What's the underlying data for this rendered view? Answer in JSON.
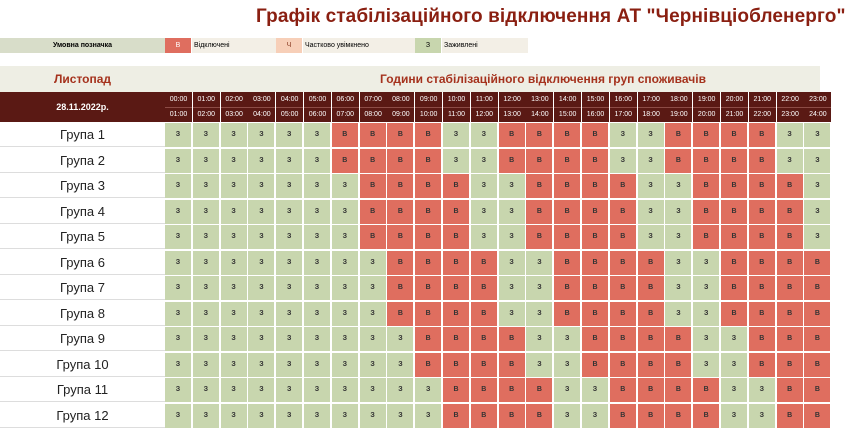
{
  "title": "Графік стабілізаційного відключення АТ \"Чернівціобленерго\"",
  "legend": {
    "heading": "Умовна позначка",
    "items": [
      {
        "code": "В",
        "label": "Відключені"
      },
      {
        "code": "Ч",
        "label": "Частково увімкнено"
      },
      {
        "code": "З",
        "label": "Заживлені"
      }
    ]
  },
  "colors": {
    "on": "#c8d6ae",
    "off": "#df6e5f",
    "partial": "#f7cfb8",
    "header_dark": "#5a1914",
    "accent": "#a5321d"
  },
  "table": {
    "month": "Листопад",
    "hours_title": "Години стабілізаційного відключення груп споживачів",
    "date": "28.11.2022р.",
    "hours": [
      {
        "from": "00:00",
        "to": "01:00"
      },
      {
        "from": "01:00",
        "to": "02:00"
      },
      {
        "from": "02:00",
        "to": "03:00"
      },
      {
        "from": "03:00",
        "to": "04:00"
      },
      {
        "from": "04:00",
        "to": "05:00"
      },
      {
        "from": "05:00",
        "to": "06:00"
      },
      {
        "from": "06:00",
        "to": "07:00"
      },
      {
        "from": "07:00",
        "to": "08:00"
      },
      {
        "from": "08:00",
        "to": "09:00"
      },
      {
        "from": "09:00",
        "to": "10:00"
      },
      {
        "from": "10:00",
        "to": "11:00"
      },
      {
        "from": "11:00",
        "to": "12:00"
      },
      {
        "from": "12:00",
        "to": "13:00"
      },
      {
        "from": "13:00",
        "to": "14:00"
      },
      {
        "from": "14:00",
        "to": "15:00"
      },
      {
        "from": "15:00",
        "to": "16:00"
      },
      {
        "from": "16:00",
        "to": "17:00"
      },
      {
        "from": "17:00",
        "to": "18:00"
      },
      {
        "from": "18:00",
        "to": "19:00"
      },
      {
        "from": "19:00",
        "to": "20:00"
      },
      {
        "from": "20:00",
        "to": "21:00"
      },
      {
        "from": "21:00",
        "to": "22:00"
      },
      {
        "from": "22:00",
        "to": "23:00"
      },
      {
        "from": "23:00",
        "to": "24:00"
      }
    ],
    "groups": [
      {
        "name": "Група 1",
        "cells": [
          "З",
          "З",
          "З",
          "З",
          "З",
          "З",
          "В",
          "В",
          "В",
          "В",
          "З",
          "З",
          "В",
          "В",
          "В",
          "В",
          "З",
          "З",
          "В",
          "В",
          "В",
          "В",
          "З",
          "З"
        ]
      },
      {
        "name": "Група 2",
        "cells": [
          "З",
          "З",
          "З",
          "З",
          "З",
          "З",
          "В",
          "В",
          "В",
          "В",
          "З",
          "З",
          "В",
          "В",
          "В",
          "В",
          "З",
          "З",
          "В",
          "В",
          "В",
          "В",
          "З",
          "З"
        ]
      },
      {
        "name": "Група 3",
        "cells": [
          "З",
          "З",
          "З",
          "З",
          "З",
          "З",
          "З",
          "В",
          "В",
          "В",
          "В",
          "З",
          "З",
          "В",
          "В",
          "В",
          "В",
          "З",
          "З",
          "В",
          "В",
          "В",
          "В",
          "З"
        ]
      },
      {
        "name": "Група 4",
        "cells": [
          "З",
          "З",
          "З",
          "З",
          "З",
          "З",
          "З",
          "В",
          "В",
          "В",
          "В",
          "З",
          "З",
          "В",
          "В",
          "В",
          "В",
          "З",
          "З",
          "В",
          "В",
          "В",
          "В",
          "З"
        ]
      },
      {
        "name": "Група 5",
        "cells": [
          "З",
          "З",
          "З",
          "З",
          "З",
          "З",
          "З",
          "В",
          "В",
          "В",
          "В",
          "З",
          "З",
          "В",
          "В",
          "В",
          "В",
          "З",
          "З",
          "В",
          "В",
          "В",
          "В",
          "З"
        ]
      },
      {
        "name": "Група 6",
        "cells": [
          "З",
          "З",
          "З",
          "З",
          "З",
          "З",
          "З",
          "З",
          "В",
          "В",
          "В",
          "В",
          "З",
          "З",
          "В",
          "В",
          "В",
          "В",
          "З",
          "З",
          "В",
          "В",
          "В",
          "В"
        ]
      },
      {
        "name": "Група 7",
        "cells": [
          "З",
          "З",
          "З",
          "З",
          "З",
          "З",
          "З",
          "З",
          "В",
          "В",
          "В",
          "В",
          "З",
          "З",
          "В",
          "В",
          "В",
          "В",
          "З",
          "З",
          "В",
          "В",
          "В",
          "В"
        ]
      },
      {
        "name": "Група 8",
        "cells": [
          "З",
          "З",
          "З",
          "З",
          "З",
          "З",
          "З",
          "З",
          "В",
          "В",
          "В",
          "В",
          "З",
          "З",
          "В",
          "В",
          "В",
          "В",
          "З",
          "З",
          "В",
          "В",
          "В",
          "В"
        ]
      },
      {
        "name": "Група 9",
        "cells": [
          "З",
          "З",
          "З",
          "З",
          "З",
          "З",
          "З",
          "З",
          "З",
          "В",
          "В",
          "В",
          "В",
          "З",
          "З",
          "В",
          "В",
          "В",
          "В",
          "З",
          "З",
          "В",
          "В",
          "В"
        ]
      },
      {
        "name": "Група 10",
        "cells": [
          "З",
          "З",
          "З",
          "З",
          "З",
          "З",
          "З",
          "З",
          "З",
          "В",
          "В",
          "В",
          "В",
          "З",
          "З",
          "В",
          "В",
          "В",
          "В",
          "З",
          "З",
          "В",
          "В",
          "В"
        ]
      },
      {
        "name": "Група 11",
        "cells": [
          "З",
          "З",
          "З",
          "З",
          "З",
          "З",
          "З",
          "З",
          "З",
          "З",
          "В",
          "В",
          "В",
          "В",
          "З",
          "З",
          "В",
          "В",
          "В",
          "В",
          "З",
          "З",
          "В",
          "В"
        ]
      },
      {
        "name": "Група 12",
        "cells": [
          "З",
          "З",
          "З",
          "З",
          "З",
          "З",
          "З",
          "З",
          "З",
          "З",
          "В",
          "В",
          "В",
          "В",
          "З",
          "З",
          "В",
          "В",
          "В",
          "В",
          "З",
          "З",
          "В",
          "В"
        ]
      }
    ]
  }
}
